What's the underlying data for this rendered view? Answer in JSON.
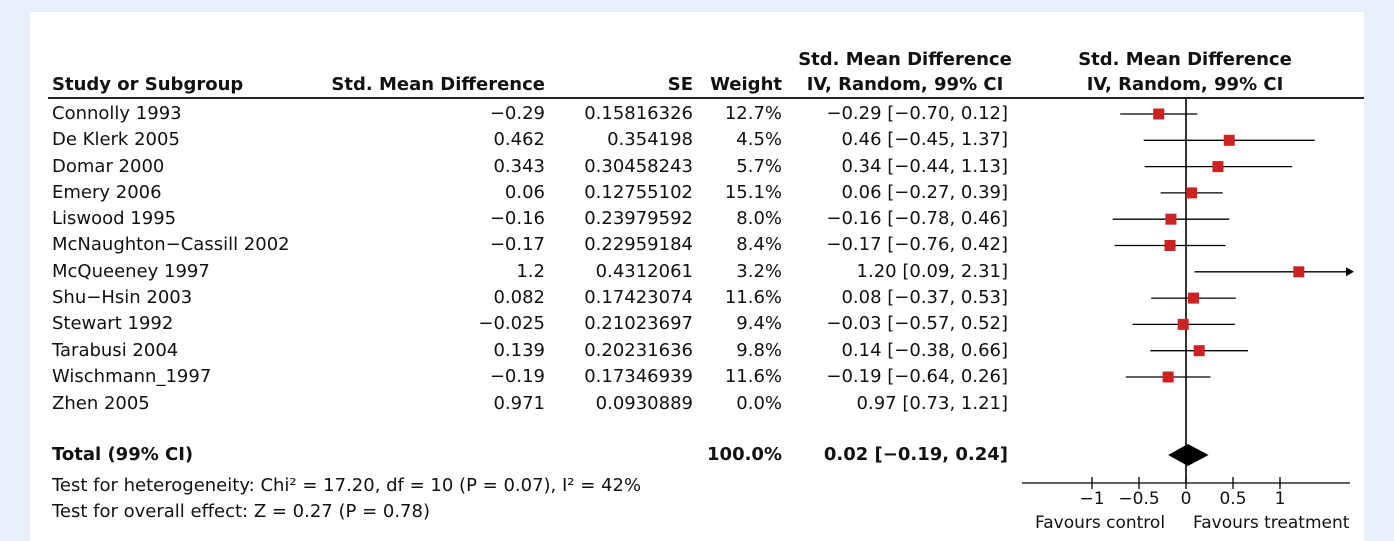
{
  "headers": {
    "study": "Study or Subgroup",
    "smd": "Std. Mean Difference",
    "se": "SE",
    "weight": "Weight",
    "ci_top": "Std. Mean Difference",
    "ci_bottom": "IV, Random, 99% CI",
    "plot_top": "Std. Mean Difference",
    "plot_bottom": "IV, Random, 99% CI"
  },
  "rows": [
    {
      "study": "Connolly 1993",
      "smd": "−0.29",
      "se": "0.15816326",
      "weight": "12.7%",
      "ci": "−0.29 [−0.70, 0.12]"
    },
    {
      "study": "De Klerk 2005",
      "smd": "0.462",
      "se": "0.354198",
      "weight": "4.5%",
      "ci": "0.46 [−0.45, 1.37]"
    },
    {
      "study": "Domar 2000",
      "smd": "0.343",
      "se": "0.30458243",
      "weight": "5.7%",
      "ci": "0.34 [−0.44, 1.13]"
    },
    {
      "study": "Emery 2006",
      "smd": "0.06",
      "se": "0.12755102",
      "weight": "15.1%",
      "ci": "0.06 [−0.27, 0.39]"
    },
    {
      "study": "Liswood 1995",
      "smd": "−0.16",
      "se": "0.23979592",
      "weight": "8.0%",
      "ci": "−0.16 [−0.78, 0.46]"
    },
    {
      "study": "McNaughton−Cassill 2002",
      "smd": "−0.17",
      "se": "0.22959184",
      "weight": "8.4%",
      "ci": "−0.17 [−0.76, 0.42]"
    },
    {
      "study": "McQueeney 1997",
      "smd": "1.2",
      "se": "0.4312061",
      "weight": "3.2%",
      "ci": "1.20 [0.09, 2.31]"
    },
    {
      "study": "Shu−Hsin 2003",
      "smd": "0.082",
      "se": "0.17423074",
      "weight": "11.6%",
      "ci": "0.08 [−0.37, 0.53]"
    },
    {
      "study": "Stewart 1992",
      "smd": "−0.025",
      "se": "0.21023697",
      "weight": "9.4%",
      "ci": "−0.03 [−0.57, 0.52]"
    },
    {
      "study": "Tarabusi 2004",
      "smd": "0.139",
      "se": "0.20231636",
      "weight": "9.8%",
      "ci": "0.14 [−0.38, 0.66]"
    },
    {
      "study": "Wischmann_1997",
      "smd": "−0.19",
      "se": "0.17346939",
      "weight": "11.6%",
      "ci": "−0.19 [−0.64, 0.26]"
    },
    {
      "study": "Zhen 2005",
      "smd": "0.971",
      "se": "0.0930889",
      "weight": "0.0%",
      "ci": "0.97 [0.73, 1.21]"
    }
  ],
  "total": {
    "label": "Total (99% CI)",
    "weight": "100.0%",
    "ci": "0.02 [−0.19, 0.24]"
  },
  "tests": {
    "heterogeneity": "Test for heterogeneity: Chi² = 17.20, df = 10 (P = 0.07), I² = 42%",
    "overall": "Test for overall effect: Z = 0.27 (P = 0.78)"
  },
  "axis": {
    "ticks": [
      -1,
      -0.5,
      0,
      0.5,
      1
    ],
    "tick_labels": [
      "−1",
      "−0.5",
      "0",
      "0.5",
      "1"
    ],
    "left_label": "Favours control",
    "right_label": "Favours treatment"
  },
  "chart_data": {
    "type": "forest",
    "xlim": [
      -1.1,
      1.7
    ],
    "marker_color": "#cc2222",
    "points": [
      {
        "study": "Connolly 1993",
        "est": -0.29,
        "lo": -0.7,
        "hi": 0.12
      },
      {
        "study": "De Klerk 2005",
        "est": 0.46,
        "lo": -0.45,
        "hi": 1.37
      },
      {
        "study": "Domar 2000",
        "est": 0.34,
        "lo": -0.44,
        "hi": 1.13
      },
      {
        "study": "Emery 2006",
        "est": 0.06,
        "lo": -0.27,
        "hi": 0.39
      },
      {
        "study": "Liswood 1995",
        "est": -0.16,
        "lo": -0.78,
        "hi": 0.46
      },
      {
        "study": "McNaughton−Cassill 2002",
        "est": -0.17,
        "lo": -0.76,
        "hi": 0.42
      },
      {
        "study": "McQueeney 1997",
        "est": 1.2,
        "lo": 0.09,
        "hi": 2.31
      },
      {
        "study": "Shu−Hsin 2003",
        "est": 0.08,
        "lo": -0.37,
        "hi": 0.53
      },
      {
        "study": "Stewart 1992",
        "est": -0.03,
        "lo": -0.57,
        "hi": 0.52
      },
      {
        "study": "Tarabusi 2004",
        "est": 0.14,
        "lo": -0.38,
        "hi": 0.66
      },
      {
        "study": "Wischmann_1997",
        "est": -0.19,
        "lo": -0.64,
        "hi": 0.26
      }
    ],
    "total": {
      "est": 0.02,
      "lo": -0.19,
      "hi": 0.24
    }
  }
}
